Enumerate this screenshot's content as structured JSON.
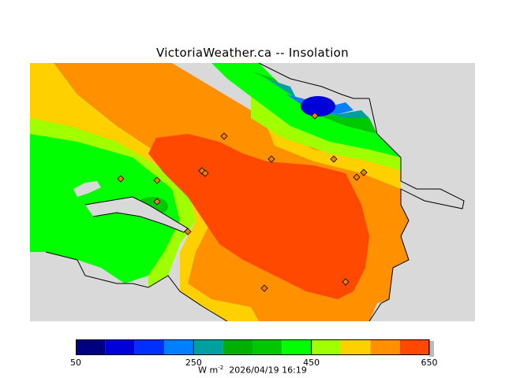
{
  "title": "VictoriaWeather.ca -- Insolation",
  "colorbar": {
    "min": 50,
    "max": 650,
    "step": 50,
    "tick_labels": [
      "50",
      "250",
      "450",
      "650"
    ],
    "tick_values": [
      50,
      250,
      450,
      650
    ],
    "colors": [
      "#000080",
      "#0000d8",
      "#0030ff",
      "#0080ff",
      "#00a0a0",
      "#00b000",
      "#00c800",
      "#00ff00",
      "#a0ff00",
      "#ffd000",
      "#ff9000",
      "#ff4800",
      "#ff0000"
    ]
  },
  "units": {
    "unit_base": "W m",
    "unit_exp": "-2",
    "timestamp": "2026/04/19 16:19"
  },
  "stations": [
    {
      "id": "s1"
    },
    {
      "id": "s2"
    },
    {
      "id": "s3"
    },
    {
      "id": "s4"
    },
    {
      "id": "s5"
    },
    {
      "id": "s6"
    },
    {
      "id": "s7"
    },
    {
      "id": "s8"
    },
    {
      "id": "s9"
    },
    {
      "id": "s10"
    },
    {
      "id": "s11"
    },
    {
      "id": "s12"
    },
    {
      "id": "s13"
    },
    {
      "id": "s14"
    }
  ],
  "colors": {
    "land_background": "#d9d9d9",
    "station_marker": "#f08000"
  }
}
